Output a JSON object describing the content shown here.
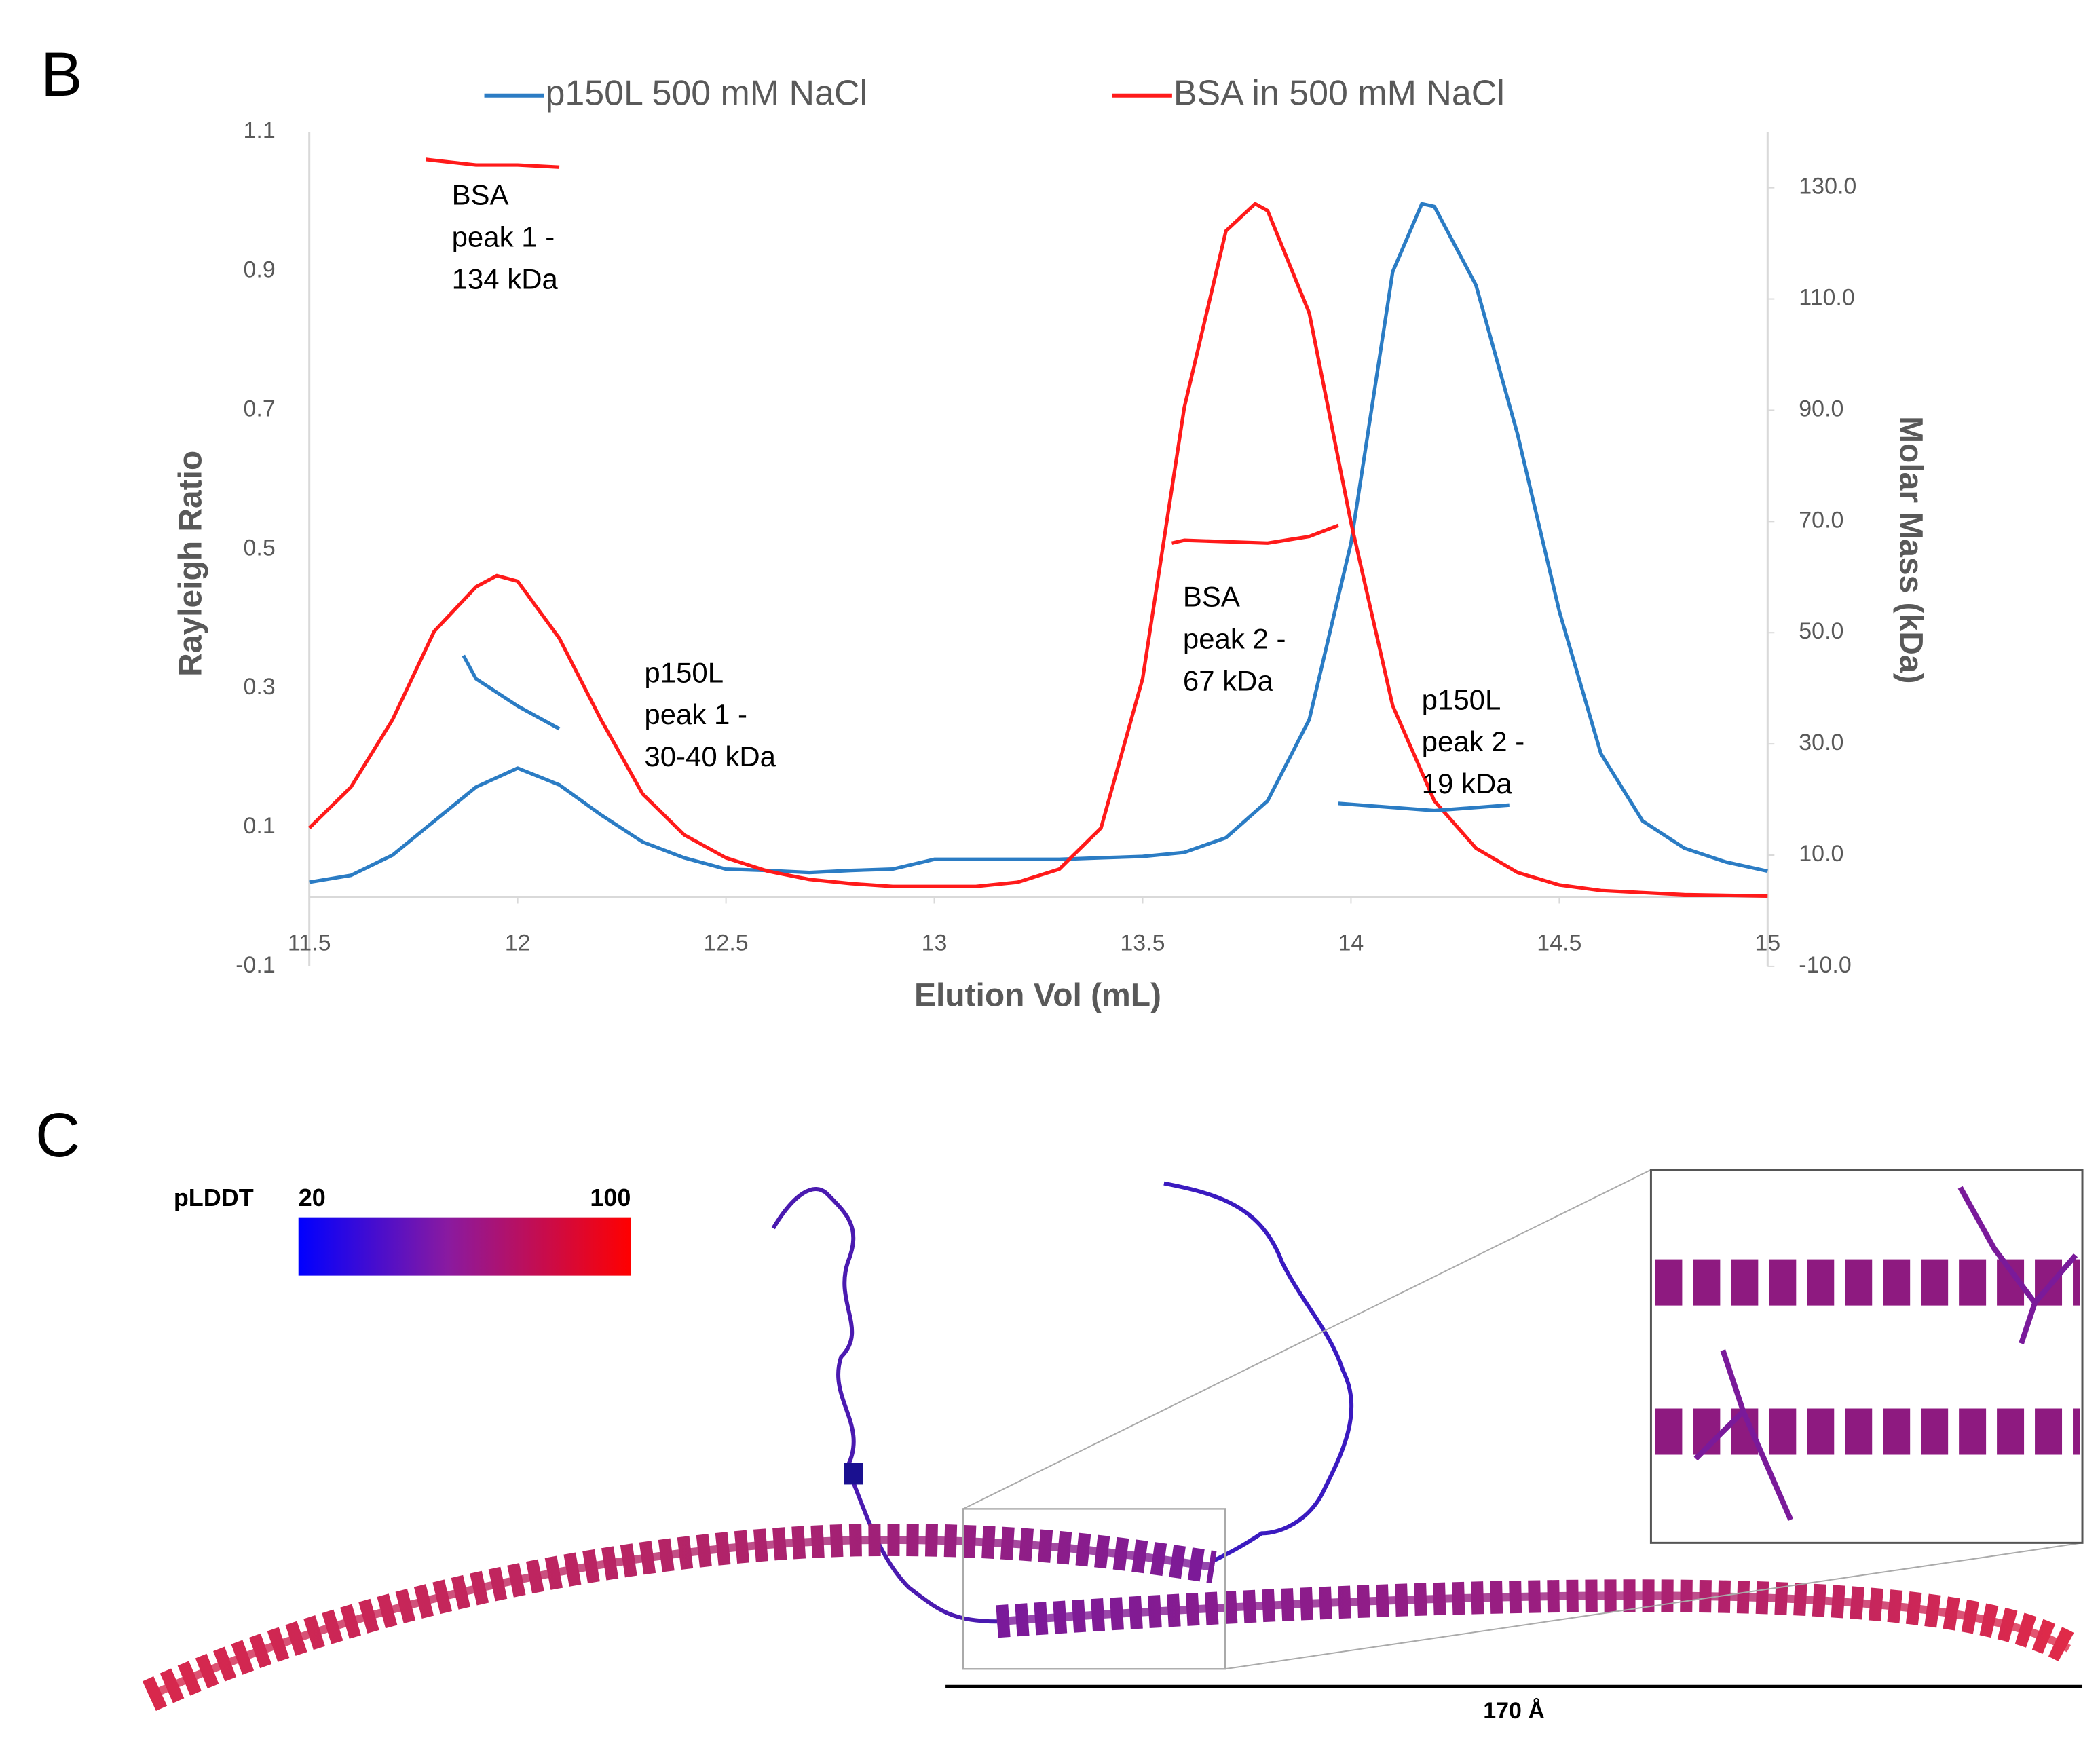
{
  "panel_label": "B",
  "chart_data": {
    "type": "line",
    "legend": "top",
    "xlabel": "Elution Vol (mL)",
    "ylabel": "Rayleigh Ratio",
    "y2label": "Molar Mass (kDa)",
    "xlim": [
      11.5,
      15
    ],
    "xticks": [
      11.5,
      12,
      12.5,
      13,
      13.5,
      14,
      14.5,
      15
    ],
    "ylim": [
      -0.1,
      1.1
    ],
    "yticks": [
      -0.1,
      0.1,
      0.3,
      0.5,
      0.7,
      0.9,
      1.1
    ],
    "y2lim": [
      -10,
      140
    ],
    "y2ticks": [
      {
        "value": -10,
        "label": "-10.0"
      },
      {
        "value": 10,
        "label": "10.0"
      },
      {
        "value": 30,
        "label": "30.0"
      },
      {
        "value": 50,
        "label": "50.0"
      },
      {
        "value": 70,
        "label": "70.0"
      },
      {
        "value": 90,
        "label": "90.0"
      },
      {
        "value": 110,
        "label": "110.0"
      },
      {
        "value": 130,
        "label": "130.0"
      }
    ],
    "grid": false,
    "series": [
      {
        "name": "p150L 500 mM NaCl",
        "color": "#2b7cc4",
        "axis": "y",
        "x": [
          11.5,
          11.6,
          11.7,
          11.8,
          11.9,
          12.0,
          12.1,
          12.2,
          12.3,
          12.4,
          12.5,
          12.6,
          12.7,
          12.8,
          12.9,
          13.0,
          13.1,
          13.2,
          13.3,
          13.4,
          13.5,
          13.6,
          13.7,
          13.8,
          13.9,
          14.0,
          14.1,
          14.17,
          14.2,
          14.3,
          14.4,
          14.5,
          14.6,
          14.7,
          14.8,
          14.9,
          15.0
        ],
        "values": [
          0.021,
          0.031,
          0.06,
          0.109,
          0.158,
          0.185,
          0.161,
          0.118,
          0.079,
          0.056,
          0.04,
          0.038,
          0.035,
          0.038,
          0.04,
          0.054,
          0.054,
          0.054,
          0.054,
          0.056,
          0.058,
          0.064,
          0.085,
          0.138,
          0.255,
          0.509,
          0.899,
          0.997,
          0.993,
          0.88,
          0.665,
          0.411,
          0.206,
          0.109,
          0.07,
          0.05,
          0.037
        ]
      },
      {
        "name": "BSA in 500 mM NaCl",
        "color": "#ff1a1a",
        "axis": "y",
        "x": [
          11.5,
          11.6,
          11.7,
          11.8,
          11.9,
          11.95,
          12.0,
          12.1,
          12.2,
          12.3,
          12.4,
          12.5,
          12.6,
          12.7,
          12.8,
          12.9,
          13.0,
          13.1,
          13.2,
          13.3,
          13.4,
          13.5,
          13.6,
          13.7,
          13.77,
          13.8,
          13.9,
          14.0,
          14.1,
          14.2,
          14.3,
          14.4,
          14.5,
          14.6,
          14.8,
          15.0
        ],
        "values": [
          0.099,
          0.158,
          0.255,
          0.382,
          0.446,
          0.462,
          0.454,
          0.372,
          0.255,
          0.148,
          0.089,
          0.056,
          0.037,
          0.025,
          0.019,
          0.015,
          0.015,
          0.015,
          0.021,
          0.04,
          0.099,
          0.314,
          0.704,
          0.958,
          0.997,
          0.987,
          0.84,
          0.538,
          0.275,
          0.138,
          0.07,
          0.035,
          0.017,
          0.009,
          0.003,
          0.001
        ]
      },
      {
        "color": "#ff1a1a",
        "axis": "y2",
        "x": [
          11.78,
          11.9,
          12.0,
          12.1
        ],
        "values": [
          135.1,
          134.1,
          134.1,
          133.7
        ]
      },
      {
        "color": "#2b7cc4",
        "axis": "y2",
        "x": [
          11.87,
          11.9,
          12.0,
          12.1
        ],
        "values": [
          45.9,
          41.7,
          36.8,
          32.7
        ]
      },
      {
        "color": "#ff1a1a",
        "axis": "y2",
        "x": [
          13.57,
          13.6,
          13.8,
          13.9,
          13.97
        ],
        "values": [
          66.1,
          66.6,
          66.1,
          67.3,
          69.3
        ]
      },
      {
        "color": "#2b7cc4",
        "axis": "y2",
        "x": [
          13.97,
          14.2,
          14.38
        ],
        "values": [
          19.3,
          18.0,
          19.0
        ]
      }
    ],
    "annotations": [
      {
        "lines": [
          "BSA",
          "peak 1 -",
          "134 kDa"
        ]
      },
      {
        "lines": [
          "p150L",
          "peak 1 -",
          "30-40 kDa"
        ]
      },
      {
        "lines": [
          "BSA",
          "peak 2 -",
          "67 kDa"
        ]
      },
      {
        "lines": [
          "p150L",
          "peak 2 -",
          "19 kDa"
        ]
      }
    ]
  },
  "structure_panel": {
    "label": "C",
    "colorbar_title": "pLDDT",
    "colorbar_min": 20,
    "colorbar_max": 100,
    "scale_bar": "170 Å"
  }
}
